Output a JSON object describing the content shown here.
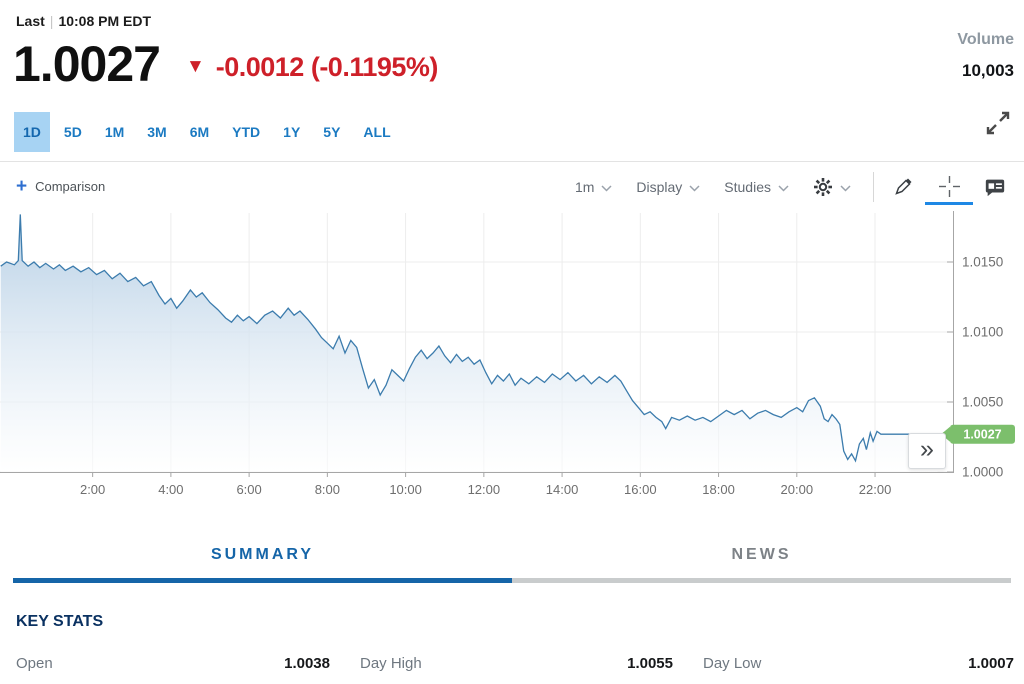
{
  "header": {
    "last_label": "Last",
    "divider": "|",
    "timestamp": "10:08 PM EDT",
    "price": "1.0027",
    "change_arrow": "▼",
    "change_text": "-0.0012 (-0.1195%)",
    "volume_label": "Volume",
    "volume_value": "10,003",
    "expand_icon": "expand-icon"
  },
  "range_tabs": [
    {
      "label": "1D",
      "active": true
    },
    {
      "label": "5D",
      "active": false
    },
    {
      "label": "1M",
      "active": false
    },
    {
      "label": "3M",
      "active": false
    },
    {
      "label": "6M",
      "active": false
    },
    {
      "label": "YTD",
      "active": false
    },
    {
      "label": "1Y",
      "active": false
    },
    {
      "label": "5Y",
      "active": false
    },
    {
      "label": "ALL",
      "active": false
    }
  ],
  "toolbar": {
    "comparison_plus": "+",
    "comparison_label": "Comparison",
    "interval_label": "1m",
    "display_label": "Display",
    "studies_label": "Studies",
    "icons": [
      "gear-icon",
      "pencil-icon",
      "crosshair-icon",
      "news-icon"
    ],
    "active_tool": "crosshair-icon"
  },
  "chart_data": {
    "type": "area",
    "title": "Intraday price (1D, 1m interval)",
    "x_unit": "hours",
    "xlim_hours": [
      -0.4,
      24.2
    ],
    "ylim": [
      1.0,
      1.0187
    ],
    "grid": true,
    "legend": "none",
    "line_color": "#3c7cad",
    "fill_top_color": "#b3cde4",
    "fill_bottom_color": "#ffffff",
    "tag_color": "#7cbf6c",
    "last_price_tag": "1.0027",
    "more_button": "»",
    "x_ticks": [
      {
        "t": 2,
        "label": "2:00"
      },
      {
        "t": 4,
        "label": "4:00"
      },
      {
        "t": 6,
        "label": "6:00"
      },
      {
        "t": 8,
        "label": "8:00"
      },
      {
        "t": 10,
        "label": "10:00"
      },
      {
        "t": 12,
        "label": "12:00"
      },
      {
        "t": 14,
        "label": "14:00"
      },
      {
        "t": 16,
        "label": "16:00"
      },
      {
        "t": 18,
        "label": "18:00"
      },
      {
        "t": 20,
        "label": "20:00"
      },
      {
        "t": 22,
        "label": "22:00"
      }
    ],
    "y_ticks": [
      {
        "v": 1.0,
        "label": "1.0000"
      },
      {
        "v": 1.005,
        "label": "1.0050"
      },
      {
        "v": 1.01,
        "label": "1.0100"
      },
      {
        "v": 1.015,
        "label": "1.0150"
      }
    ],
    "points": [
      [
        -0.35,
        1.0147
      ],
      [
        -0.2,
        1.015
      ],
      [
        0.0,
        1.0148
      ],
      [
        0.1,
        1.0151
      ],
      [
        0.15,
        1.0184
      ],
      [
        0.2,
        1.0151
      ],
      [
        0.35,
        1.0147
      ],
      [
        0.5,
        1.015
      ],
      [
        0.65,
        1.0146
      ],
      [
        0.8,
        1.0149
      ],
      [
        1.0,
        1.0145
      ],
      [
        1.15,
        1.0148
      ],
      [
        1.3,
        1.0144
      ],
      [
        1.5,
        1.0147
      ],
      [
        1.7,
        1.0143
      ],
      [
        1.9,
        1.0146
      ],
      [
        2.1,
        1.0141
      ],
      [
        2.3,
        1.0144
      ],
      [
        2.5,
        1.0138
      ],
      [
        2.7,
        1.0142
      ],
      [
        2.9,
        1.0136
      ],
      [
        3.1,
        1.0139
      ],
      [
        3.3,
        1.0133
      ],
      [
        3.5,
        1.0136
      ],
      [
        3.7,
        1.0126
      ],
      [
        3.85,
        1.012
      ],
      [
        4.0,
        1.0124
      ],
      [
        4.15,
        1.0117
      ],
      [
        4.3,
        1.0122
      ],
      [
        4.5,
        1.013
      ],
      [
        4.65,
        1.0125
      ],
      [
        4.8,
        1.0128
      ],
      [
        5.0,
        1.0121
      ],
      [
        5.2,
        1.0116
      ],
      [
        5.4,
        1.011
      ],
      [
        5.55,
        1.0107
      ],
      [
        5.7,
        1.0112
      ],
      [
        5.85,
        1.0108
      ],
      [
        6.0,
        1.0111
      ],
      [
        6.2,
        1.0106
      ],
      [
        6.4,
        1.0112
      ],
      [
        6.6,
        1.0115
      ],
      [
        6.8,
        1.011
      ],
      [
        7.0,
        1.0117
      ],
      [
        7.15,
        1.0112
      ],
      [
        7.3,
        1.0115
      ],
      [
        7.5,
        1.0109
      ],
      [
        7.7,
        1.0102
      ],
      [
        7.85,
        1.0096
      ],
      [
        8.0,
        1.0092
      ],
      [
        8.15,
        1.0088
      ],
      [
        8.3,
        1.0097
      ],
      [
        8.45,
        1.0085
      ],
      [
        8.6,
        1.0094
      ],
      [
        8.75,
        1.0089
      ],
      [
        8.9,
        1.0074
      ],
      [
        9.05,
        1.006
      ],
      [
        9.2,
        1.0066
      ],
      [
        9.35,
        1.0055
      ],
      [
        9.5,
        1.0062
      ],
      [
        9.65,
        1.0073
      ],
      [
        9.8,
        1.0069
      ],
      [
        9.95,
        1.0065
      ],
      [
        10.1,
        1.0074
      ],
      [
        10.25,
        1.0082
      ],
      [
        10.4,
        1.0087
      ],
      [
        10.55,
        1.0081
      ],
      [
        10.7,
        1.0085
      ],
      [
        10.85,
        1.009
      ],
      [
        11.0,
        1.0083
      ],
      [
        11.15,
        1.0078
      ],
      [
        11.3,
        1.0084
      ],
      [
        11.45,
        1.0079
      ],
      [
        11.6,
        1.0082
      ],
      [
        11.75,
        1.0077
      ],
      [
        11.9,
        1.008
      ],
      [
        12.05,
        1.0071
      ],
      [
        12.2,
        1.0063
      ],
      [
        12.35,
        1.0069
      ],
      [
        12.5,
        1.0065
      ],
      [
        12.65,
        1.007
      ],
      [
        12.8,
        1.0062
      ],
      [
        12.95,
        1.0067
      ],
      [
        13.15,
        1.0063
      ],
      [
        13.35,
        1.0068
      ],
      [
        13.55,
        1.0064
      ],
      [
        13.75,
        1.007
      ],
      [
        13.95,
        1.0066
      ],
      [
        14.15,
        1.0071
      ],
      [
        14.35,
        1.0065
      ],
      [
        14.55,
        1.0069
      ],
      [
        14.75,
        1.0063
      ],
      [
        14.95,
        1.0068
      ],
      [
        15.15,
        1.0064
      ],
      [
        15.35,
        1.0069
      ],
      [
        15.5,
        1.0065
      ],
      [
        15.65,
        1.0058
      ],
      [
        15.8,
        1.0051
      ],
      [
        15.95,
        1.0046
      ],
      [
        16.1,
        1.0041
      ],
      [
        16.25,
        1.0043
      ],
      [
        16.4,
        1.0039
      ],
      [
        16.55,
        1.0036
      ],
      [
        16.65,
        1.0031
      ],
      [
        16.8,
        1.0039
      ],
      [
        17.0,
        1.0037
      ],
      [
        17.2,
        1.004
      ],
      [
        17.4,
        1.0037
      ],
      [
        17.6,
        1.0039
      ],
      [
        17.8,
        1.0036
      ],
      [
        18.0,
        1.004
      ],
      [
        18.2,
        1.0044
      ],
      [
        18.4,
        1.0041
      ],
      [
        18.6,
        1.0044
      ],
      [
        18.8,
        1.0038
      ],
      [
        19.0,
        1.0042
      ],
      [
        19.2,
        1.0044
      ],
      [
        19.4,
        1.0041
      ],
      [
        19.6,
        1.0039
      ],
      [
        19.8,
        1.0043
      ],
      [
        20.0,
        1.0046
      ],
      [
        20.15,
        1.0043
      ],
      [
        20.3,
        1.0051
      ],
      [
        20.45,
        1.0053
      ],
      [
        20.6,
        1.0047
      ],
      [
        20.7,
        1.0038
      ],
      [
        20.8,
        1.0036
      ],
      [
        20.9,
        1.0041
      ],
      [
        21.0,
        1.0038
      ],
      [
        21.1,
        1.0034
      ],
      [
        21.2,
        1.0015
      ],
      [
        21.3,
        1.0009
      ],
      [
        21.4,
        1.0013
      ],
      [
        21.5,
        1.0008
      ],
      [
        21.6,
        1.002
      ],
      [
        21.7,
        1.0024
      ],
      [
        21.78,
        1.0016
      ],
      [
        21.88,
        1.0028
      ],
      [
        21.95,
        1.0022
      ],
      [
        22.05,
        1.0029
      ],
      [
        22.15,
        1.0027
      ],
      [
        23.6,
        1.0027
      ]
    ]
  },
  "section_tabs": [
    {
      "label": "SUMMARY",
      "active": true
    },
    {
      "label": "NEWS",
      "active": false
    }
  ],
  "key_stats": {
    "title": "KEY STATS",
    "items": [
      {
        "label": "Open",
        "value": "1.0038"
      },
      {
        "label": "Day High",
        "value": "1.0055"
      },
      {
        "label": "Day Low",
        "value": "1.0007"
      }
    ]
  }
}
